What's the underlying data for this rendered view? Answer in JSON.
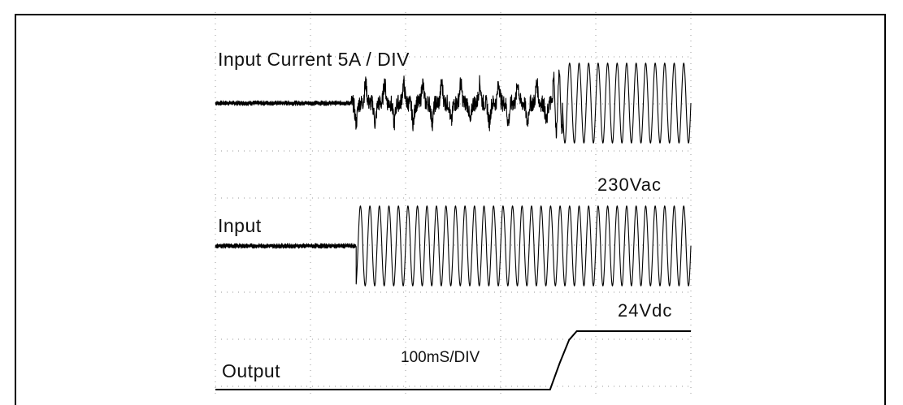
{
  "chart_data": {
    "type": "line",
    "title": "",
    "xlabel": "",
    "ylabel": "",
    "timebase": "100mS/DIV",
    "x_unit": "ms",
    "xlim": [
      0,
      500
    ],
    "grid": true,
    "annotations": {
      "ch1_scale": "Input Current 5A / DIV",
      "ch2_level": "230Vac",
      "ch3_level": "24Vdc"
    },
    "series": [
      {
        "name": "Input Current 5A / DIV",
        "label": "Input Current 5A / DIV",
        "color": "#000000",
        "segments": [
          {
            "t0": 0,
            "t1": 143,
            "shape": "noise",
            "amplitude_div": 0.05
          },
          {
            "t0": 143,
            "t1": 355,
            "shape": "spikes",
            "amplitude_div": 0.6,
            "period_ms": 10
          },
          {
            "t0": 355,
            "t1": 365,
            "shape": "burst",
            "amplitude_div": 0.8
          },
          {
            "t0": 365,
            "t1": 500,
            "shape": "sine",
            "amplitude_div": 1.7,
            "period_ms": 10
          }
        ]
      },
      {
        "name": "Input",
        "label": "Input",
        "color": "#000000",
        "segments": [
          {
            "t0": 0,
            "t1": 148,
            "shape": "noise",
            "amplitude_div": 0.05
          },
          {
            "t0": 148,
            "t1": 500,
            "shape": "sine",
            "amplitude_div": 1.7,
            "period_ms": 10
          }
        ]
      },
      {
        "name": "Output",
        "label": "Output",
        "color": "#000000",
        "points": [
          [
            0,
            0
          ],
          [
            352,
            0
          ],
          [
            362,
            0.45
          ],
          [
            372,
            0.85
          ],
          [
            380,
            1.0
          ],
          [
            500,
            1.0
          ]
        ],
        "final_level": "24Vdc"
      }
    ]
  }
}
